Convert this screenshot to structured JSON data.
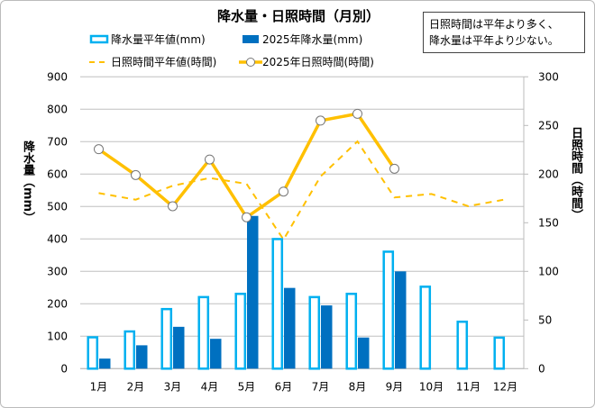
{
  "chart_data": {
    "type": "bar+line",
    "title": "降水量・日照時間（月別）",
    "annotation": [
      "日照時間は平年より多く、",
      "降水量は平年より少ない。"
    ],
    "ylabel": "降水量（mm）",
    "y2label": "日照時間（時間）",
    "ylim": [
      0,
      900
    ],
    "yticks": [
      0,
      100,
      200,
      300,
      400,
      500,
      600,
      700,
      800,
      900
    ],
    "y2lim": [
      0,
      300
    ],
    "y2ticks": [
      0,
      50,
      100,
      150,
      200,
      250,
      300
    ],
    "grid": true,
    "legend": "top",
    "categories": [
      "1月",
      "2月",
      "3月",
      "4月",
      "5月",
      "6月",
      "7月",
      "8月",
      "9月",
      "10月",
      "11月",
      "12月"
    ],
    "series": [
      {
        "name": "降水量平年値(mm)",
        "type": "bar-outline",
        "axis": "left",
        "color": "#00b0f0",
        "values": [
          100,
          118,
          187,
          224,
          234,
          403,
          224,
          234,
          364,
          256,
          148,
          99
        ]
      },
      {
        "name": "2025年降水量(mm)",
        "type": "bar",
        "axis": "left",
        "color": "#0070c0",
        "values": [
          31,
          72,
          129,
          92,
          471,
          249,
          195,
          96,
          300,
          null,
          null,
          null
        ]
      },
      {
        "name": "日照時間平年値(時間)",
        "type": "line-dashed",
        "axis": "right",
        "color": "#ffc000",
        "values": [
          180.5,
          173.7,
          188,
          196,
          190,
          132.7,
          197.5,
          233.6,
          176,
          179.6,
          167,
          174
        ]
      },
      {
        "name": "2025年日照時間(時間)",
        "type": "line-marker",
        "axis": "right",
        "color": "#ffc000",
        "values": [
          225.6,
          199,
          167,
          215,
          155.6,
          182,
          255,
          262,
          205.5,
          null,
          null,
          null
        ]
      }
    ]
  }
}
